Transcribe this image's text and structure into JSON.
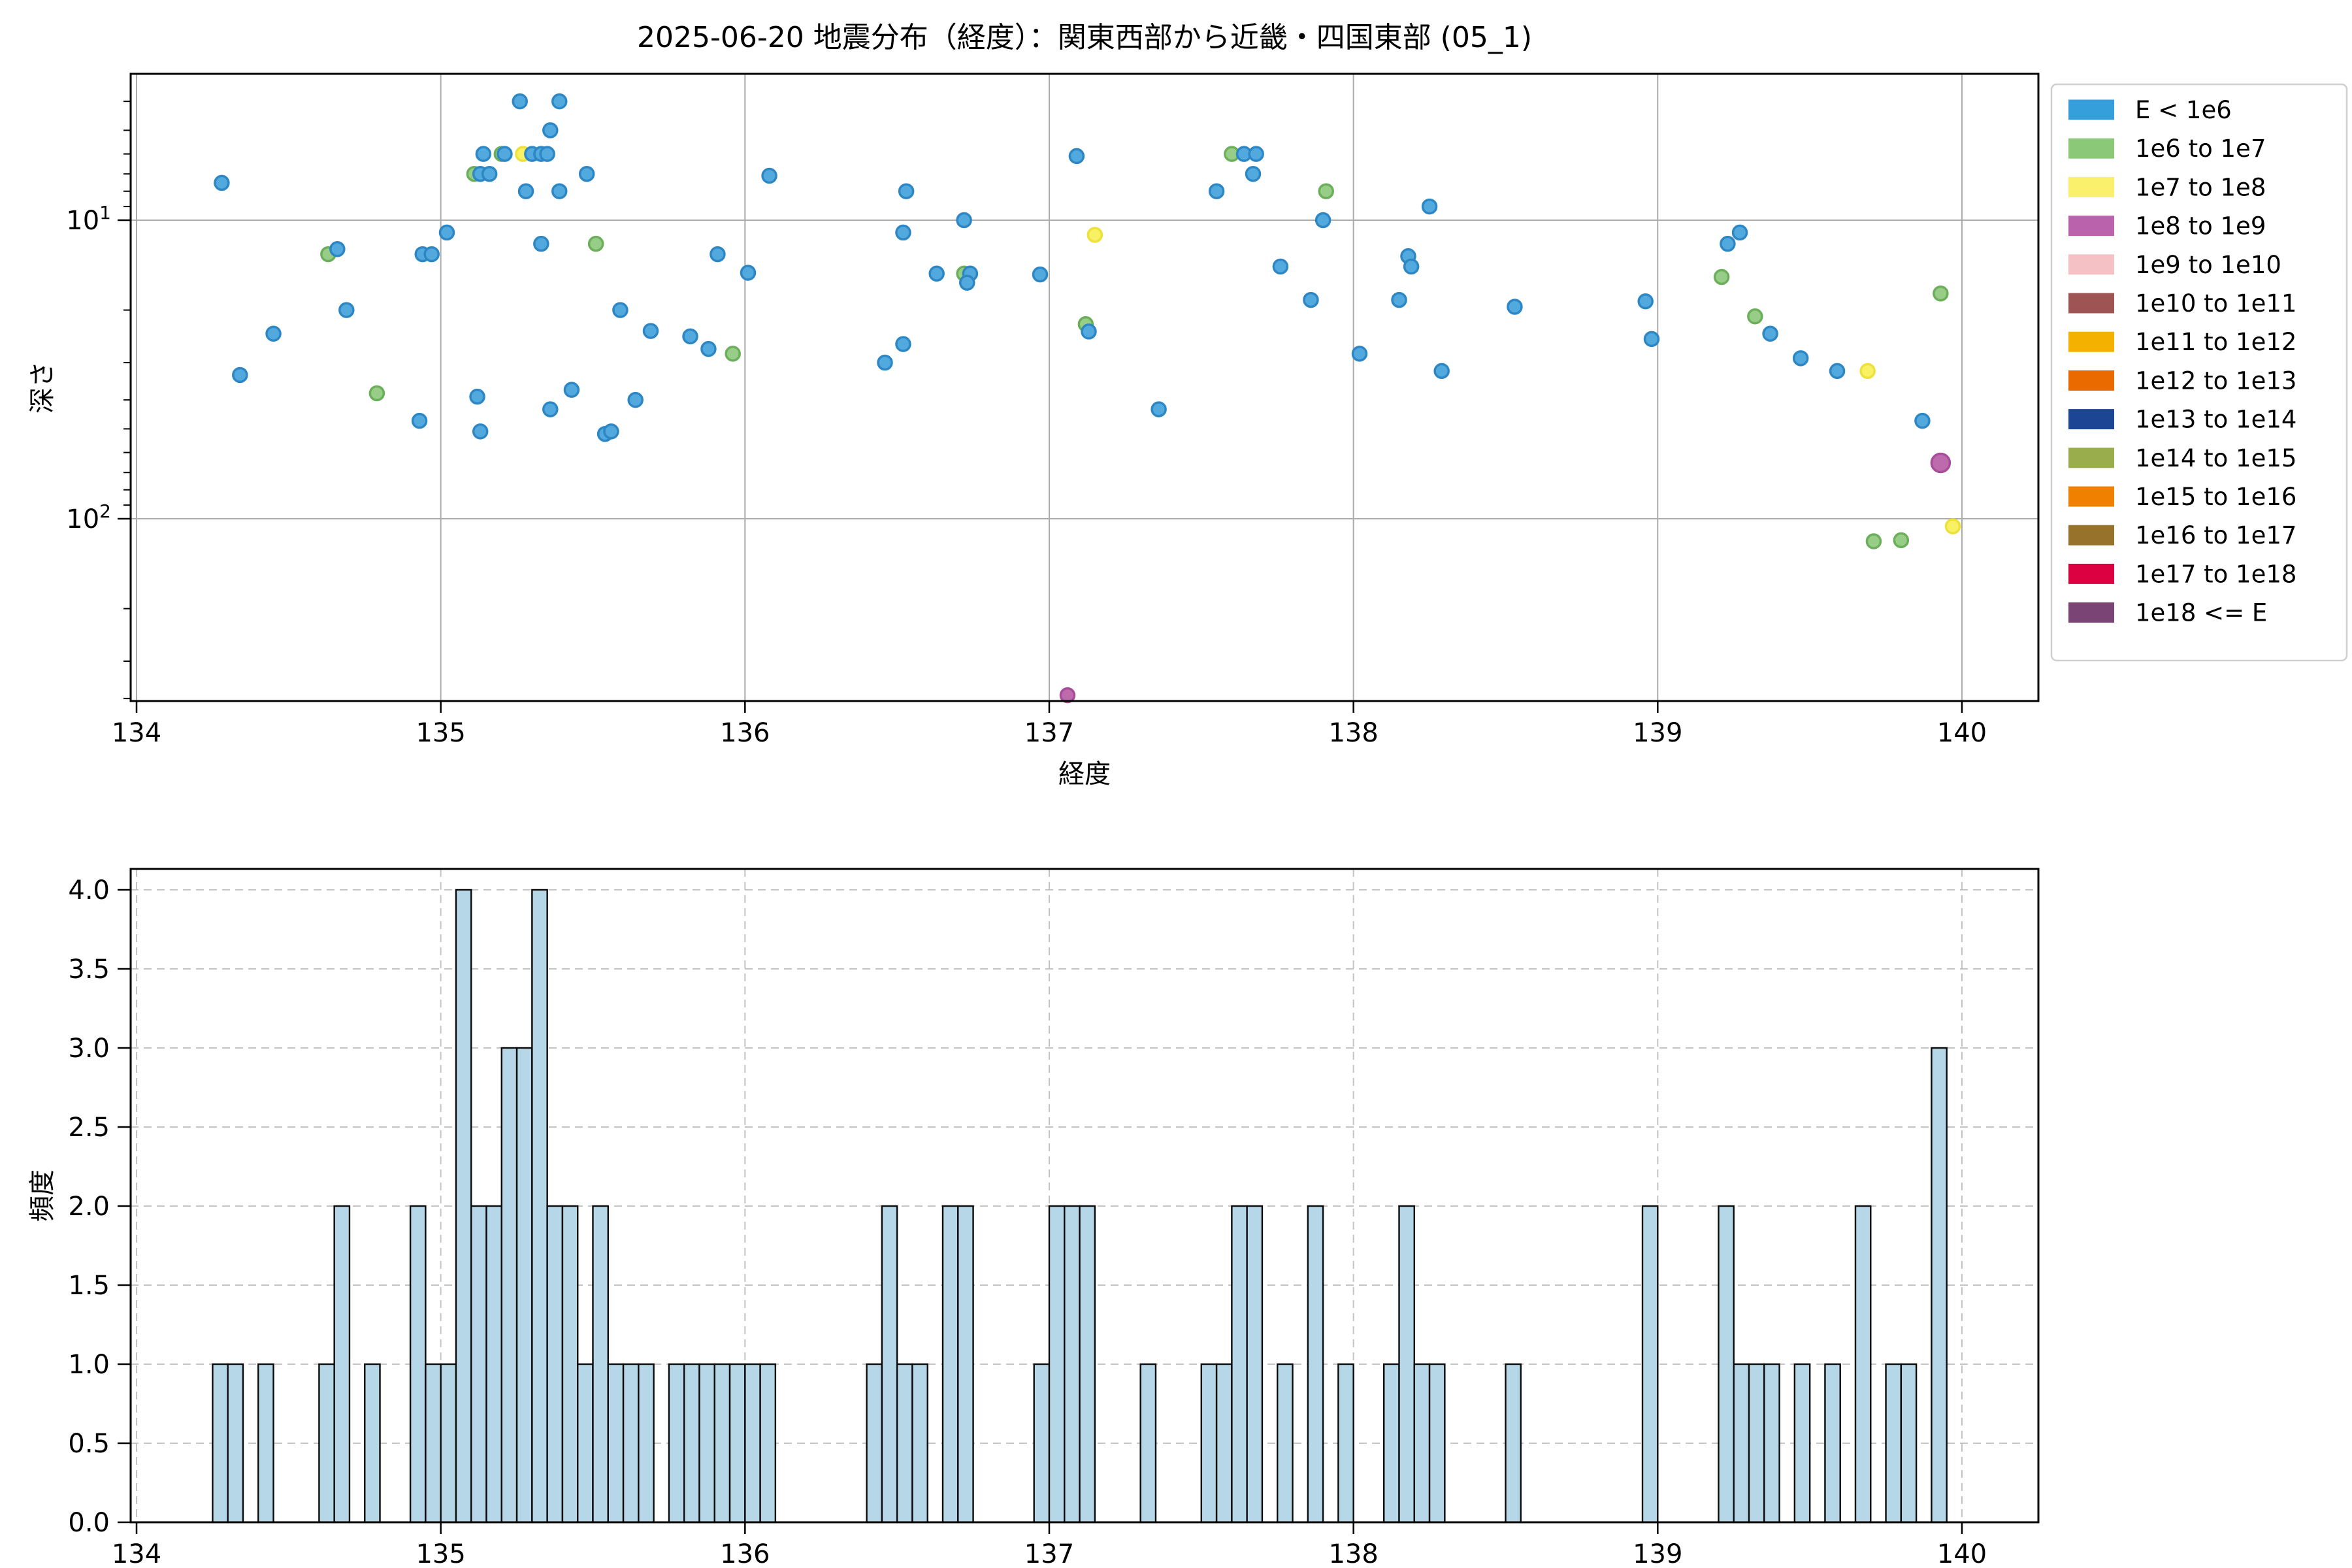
{
  "title": "2025-06-20 地震分布（経度）：関東西部から近畿・四国東部 (05_1)",
  "colors": {
    "hist_bar_fill": "#b6d7e7",
    "hist_bar_edge": "#0a0a0a",
    "grid_solid": "#ababab",
    "grid_dashed": "#c4c4c4",
    "spine": "#000000",
    "marker_styles": {
      "b": {
        "fill": "#52a9dd",
        "edge": "#2e87c5"
      },
      "g": {
        "fill": "#97cd86",
        "edge": "#6caf5b"
      },
      "y": {
        "fill": "#f8f163",
        "edge": "#ede13a"
      },
      "m": {
        "fill": "#be6bae",
        "edge": "#a84d99"
      }
    }
  },
  "legend": {
    "entries": [
      {
        "label": "E < 1e6",
        "color": "#349fda"
      },
      {
        "label": "1e6 to 1e7",
        "color": "#8bc878"
      },
      {
        "label": "1e7 to 1e8",
        "color": "#fbf06b"
      },
      {
        "label": "1e8 to 1e9",
        "color": "#bb62ac"
      },
      {
        "label": "1e9 to 1e10",
        "color": "#f5c1c5"
      },
      {
        "label": "1e10 to 1e11",
        "color": "#9e5452"
      },
      {
        "label": "1e11 to 1e12",
        "color": "#f5b100"
      },
      {
        "label": "1e12 to 1e13",
        "color": "#eb6a00"
      },
      {
        "label": "1e13 to 1e14",
        "color": "#1c4693"
      },
      {
        "label": "1e14 to 1e15",
        "color": "#9aad4c"
      },
      {
        "label": "1e15 to 1e16",
        "color": "#f08000"
      },
      {
        "label": "1e16 to 1e17",
        "color": "#97722b"
      },
      {
        "label": "1e17 to 1e18",
        "color": "#dc0241"
      },
      {
        "label": "1e18 <= E",
        "color": "#7a4474"
      }
    ]
  },
  "chart_data": [
    {
      "type": "scatter",
      "title": "2025-06-20 地震分布（経度）：関東西部から近畿・四国東部 (05_1)",
      "xlabel": "経度",
      "ylabel": "深さ",
      "xlim": [
        133.98,
        140.25
      ],
      "x_ticks": [
        134,
        135,
        136,
        137,
        138,
        139,
        140
      ],
      "y_scale": "log-inverted",
      "y_major_ticks": [
        10,
        100
      ],
      "y_minor_ticks": [
        4,
        5,
        6,
        7,
        8,
        9,
        20,
        30,
        40,
        50,
        60,
        70,
        80,
        90,
        200,
        300,
        400
      ],
      "ylim_top_depth": 3.2,
      "ylim_bottom_depth": 430,
      "legend_position": "outside-upper-right",
      "grid": "solid",
      "points": [
        {
          "x": 134.28,
          "d": 7.5,
          "c": "b"
        },
        {
          "x": 134.34,
          "d": 33,
          "c": "b"
        },
        {
          "x": 134.45,
          "d": 24,
          "c": "b"
        },
        {
          "x": 134.63,
          "d": 13,
          "c": "g"
        },
        {
          "x": 134.66,
          "d": 12.5,
          "c": "b"
        },
        {
          "x": 134.69,
          "d": 20,
          "c": "b"
        },
        {
          "x": 134.79,
          "d": 38,
          "c": "g"
        },
        {
          "x": 134.93,
          "d": 47,
          "c": "b"
        },
        {
          "x": 134.94,
          "d": 13,
          "c": "b"
        },
        {
          "x": 134.97,
          "d": 13,
          "c": "b"
        },
        {
          "x": 135.02,
          "d": 11,
          "c": "b"
        },
        {
          "x": 135.11,
          "d": 7,
          "c": "g"
        },
        {
          "x": 135.13,
          "d": 7,
          "c": "b"
        },
        {
          "x": 135.16,
          "d": 7,
          "c": "b"
        },
        {
          "x": 135.12,
          "d": 39,
          "c": "b"
        },
        {
          "x": 135.13,
          "d": 51,
          "c": "b"
        },
        {
          "x": 135.14,
          "d": 6,
          "c": "b"
        },
        {
          "x": 135.2,
          "d": 6,
          "c": "g"
        },
        {
          "x": 135.21,
          "d": 6,
          "c": "b"
        },
        {
          "x": 135.27,
          "d": 6,
          "c": "y"
        },
        {
          "x": 135.3,
          "d": 6,
          "c": "b"
        },
        {
          "x": 135.33,
          "d": 6,
          "c": "b"
        },
        {
          "x": 135.35,
          "d": 6,
          "c": "b"
        },
        {
          "x": 135.26,
          "d": 4,
          "c": "b"
        },
        {
          "x": 135.39,
          "d": 4,
          "c": "b"
        },
        {
          "x": 135.36,
          "d": 5,
          "c": "b"
        },
        {
          "x": 135.28,
          "d": 8,
          "c": "b"
        },
        {
          "x": 135.39,
          "d": 8,
          "c": "b"
        },
        {
          "x": 135.33,
          "d": 12,
          "c": "b"
        },
        {
          "x": 135.51,
          "d": 12,
          "c": "g"
        },
        {
          "x": 135.36,
          "d": 43,
          "c": "b"
        },
        {
          "x": 135.43,
          "d": 37,
          "c": "b"
        },
        {
          "x": 135.48,
          "d": 7,
          "c": "b"
        },
        {
          "x": 135.54,
          "d": 52,
          "c": "b"
        },
        {
          "x": 135.56,
          "d": 51,
          "c": "b"
        },
        {
          "x": 135.59,
          "d": 20,
          "c": "b"
        },
        {
          "x": 135.64,
          "d": 40,
          "c": "b"
        },
        {
          "x": 135.69,
          "d": 23.5,
          "c": "b"
        },
        {
          "x": 135.82,
          "d": 24.5,
          "c": "b"
        },
        {
          "x": 135.88,
          "d": 27,
          "c": "b"
        },
        {
          "x": 135.91,
          "d": 13,
          "c": "b"
        },
        {
          "x": 135.96,
          "d": 28,
          "c": "g"
        },
        {
          "x": 136.01,
          "d": 15,
          "c": "b"
        },
        {
          "x": 136.08,
          "d": 7.1,
          "c": "b"
        },
        {
          "x": 136.46,
          "d": 30,
          "c": "b"
        },
        {
          "x": 136.52,
          "d": 26,
          "c": "b"
        },
        {
          "x": 136.52,
          "d": 11,
          "c": "b"
        },
        {
          "x": 136.53,
          "d": 8,
          "c": "b"
        },
        {
          "x": 136.63,
          "d": 15.1,
          "c": "b"
        },
        {
          "x": 136.72,
          "d": 10,
          "c": "b"
        },
        {
          "x": 136.72,
          "d": 15.1,
          "c": "g"
        },
        {
          "x": 136.74,
          "d": 15.1,
          "c": "b"
        },
        {
          "x": 136.73,
          "d": 16.2,
          "c": "b"
        },
        {
          "x": 136.97,
          "d": 15.2,
          "c": "b"
        },
        {
          "x": 137.06,
          "d": 390,
          "c": "m"
        },
        {
          "x": 137.09,
          "d": 6.1,
          "c": "b"
        },
        {
          "x": 137.12,
          "d": 22.3,
          "c": "g"
        },
        {
          "x": 137.13,
          "d": 23.6,
          "c": "b"
        },
        {
          "x": 137.15,
          "d": 11.2,
          "c": "y"
        },
        {
          "x": 137.36,
          "d": 43,
          "c": "b"
        },
        {
          "x": 137.55,
          "d": 8.0,
          "c": "b"
        },
        {
          "x": 137.6,
          "d": 6.0,
          "c": "g"
        },
        {
          "x": 137.64,
          "d": 6.0,
          "c": "b"
        },
        {
          "x": 137.68,
          "d": 6.0,
          "c": "b"
        },
        {
          "x": 137.67,
          "d": 7.0,
          "c": "b"
        },
        {
          "x": 137.76,
          "d": 14.3,
          "c": "b"
        },
        {
          "x": 137.86,
          "d": 18.5,
          "c": "b"
        },
        {
          "x": 137.91,
          "d": 8.0,
          "c": "g"
        },
        {
          "x": 137.9,
          "d": 10.0,
          "c": "b"
        },
        {
          "x": 138.02,
          "d": 28,
          "c": "b"
        },
        {
          "x": 138.15,
          "d": 18.5,
          "c": "b"
        },
        {
          "x": 138.18,
          "d": 13.2,
          "c": "b"
        },
        {
          "x": 138.19,
          "d": 14.3,
          "c": "b"
        },
        {
          "x": 138.25,
          "d": 9.0,
          "c": "b"
        },
        {
          "x": 138.29,
          "d": 32,
          "c": "b"
        },
        {
          "x": 138.53,
          "d": 19.5,
          "c": "b"
        },
        {
          "x": 138.96,
          "d": 18.7,
          "c": "b"
        },
        {
          "x": 138.98,
          "d": 25,
          "c": "b"
        },
        {
          "x": 139.21,
          "d": 15.5,
          "c": "g"
        },
        {
          "x": 139.23,
          "d": 12,
          "c": "b"
        },
        {
          "x": 139.27,
          "d": 11,
          "c": "b"
        },
        {
          "x": 139.32,
          "d": 21,
          "c": "g"
        },
        {
          "x": 139.37,
          "d": 24,
          "c": "b"
        },
        {
          "x": 139.47,
          "d": 29,
          "c": "b"
        },
        {
          "x": 139.59,
          "d": 32,
          "c": "b"
        },
        {
          "x": 139.69,
          "d": 32,
          "c": "y"
        },
        {
          "x": 139.71,
          "d": 119,
          "c": "g"
        },
        {
          "x": 139.8,
          "d": 118,
          "c": "g"
        },
        {
          "x": 139.87,
          "d": 47,
          "c": "b"
        },
        {
          "x": 139.93,
          "d": 65,
          "c": "m",
          "big": true
        },
        {
          "x": 139.93,
          "d": 17.6,
          "c": "g"
        },
        {
          "x": 139.97,
          "d": 106,
          "c": "y"
        }
      ]
    },
    {
      "type": "bar",
      "xlabel": "経度",
      "ylabel": "頻度",
      "xlim": [
        133.98,
        140.25
      ],
      "x_ticks": [
        134,
        135,
        136,
        137,
        138,
        139,
        140
      ],
      "ylim": [
        0.0,
        4.0
      ],
      "y_ticks": [
        0.0,
        0.5,
        1.0,
        1.5,
        2.0,
        2.5,
        3.0,
        3.5,
        4.0
      ],
      "bin_width": 0.05,
      "grid": "dashed",
      "bins": [
        [
          134.25,
          1
        ],
        [
          134.3,
          1
        ],
        [
          134.4,
          1
        ],
        [
          134.6,
          1
        ],
        [
          134.65,
          2
        ],
        [
          134.75,
          1
        ],
        [
          134.9,
          2
        ],
        [
          134.95,
          1
        ],
        [
          135.0,
          1
        ],
        [
          135.05,
          4
        ],
        [
          135.1,
          2
        ],
        [
          135.15,
          2
        ],
        [
          135.2,
          3
        ],
        [
          135.25,
          3
        ],
        [
          135.3,
          4
        ],
        [
          135.35,
          2
        ],
        [
          135.4,
          2
        ],
        [
          135.45,
          1
        ],
        [
          135.5,
          2
        ],
        [
          135.55,
          1
        ],
        [
          135.6,
          1
        ],
        [
          135.65,
          1
        ],
        [
          135.75,
          1
        ],
        [
          135.8,
          1
        ],
        [
          135.85,
          1
        ],
        [
          135.9,
          1
        ],
        [
          135.95,
          1
        ],
        [
          136.0,
          1
        ],
        [
          136.05,
          1
        ],
        [
          136.4,
          1
        ],
        [
          136.45,
          2
        ],
        [
          136.5,
          1
        ],
        [
          136.55,
          1
        ],
        [
          136.65,
          2
        ],
        [
          136.7,
          2
        ],
        [
          136.95,
          1
        ],
        [
          137.0,
          2
        ],
        [
          137.05,
          2
        ],
        [
          137.1,
          2
        ],
        [
          137.3,
          1
        ],
        [
          137.5,
          1
        ],
        [
          137.55,
          1
        ],
        [
          137.6,
          2
        ],
        [
          137.65,
          2
        ],
        [
          137.75,
          1
        ],
        [
          137.85,
          2
        ],
        [
          137.95,
          1
        ],
        [
          138.1,
          1
        ],
        [
          138.15,
          2
        ],
        [
          138.2,
          1
        ],
        [
          138.25,
          1
        ],
        [
          138.5,
          1
        ],
        [
          138.95,
          2
        ],
        [
          139.2,
          2
        ],
        [
          139.25,
          1
        ],
        [
          139.3,
          1
        ],
        [
          139.35,
          1
        ],
        [
          139.45,
          1
        ],
        [
          139.55,
          1
        ],
        [
          139.65,
          2
        ],
        [
          139.75,
          1
        ],
        [
          139.8,
          1
        ],
        [
          139.9,
          3
        ]
      ]
    }
  ]
}
